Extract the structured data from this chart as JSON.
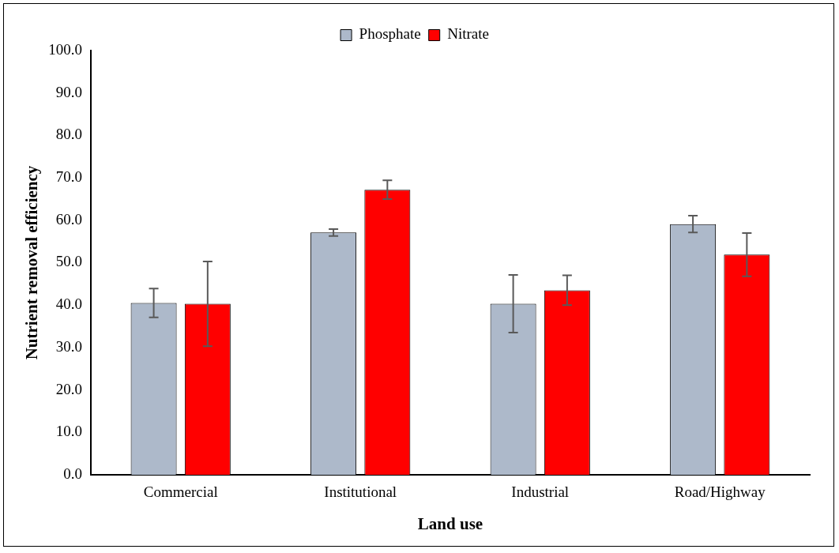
{
  "chart_data": {
    "type": "bar",
    "xlabel": "Land use",
    "ylabel": "Nutrient removal efficiency",
    "categories": [
      "Commercial",
      "Institutional",
      "Industrial",
      "Road/Highway"
    ],
    "series": [
      {
        "name": "Phosphate",
        "color": "#adb9ca",
        "values": [
          40.5,
          57.1,
          40.3,
          59.1
        ],
        "errors": [
          3.4,
          0.8,
          6.8,
          2.0
        ]
      },
      {
        "name": "Nitrate",
        "color": "#ff0000",
        "values": [
          40.3,
          67.2,
          43.5,
          51.9
        ],
        "errors": [
          10.0,
          2.2,
          3.5,
          5.1
        ]
      }
    ],
    "ylim": [
      0,
      100
    ],
    "yticks": [
      {
        "value": 0,
        "label": "0.0"
      },
      {
        "value": 10,
        "label": "10.0"
      },
      {
        "value": 20,
        "label": "20.0"
      },
      {
        "value": 30,
        "label": "30.0"
      },
      {
        "value": 40,
        "label": "40.0"
      },
      {
        "value": 50,
        "label": "50.0"
      },
      {
        "value": 60,
        "label": "60.0"
      },
      {
        "value": 70,
        "label": "70.0"
      },
      {
        "value": 80,
        "label": "80.0"
      },
      {
        "value": 90,
        "label": "90.0"
      },
      {
        "value": 100,
        "label": "100.0"
      }
    ],
    "grid": false,
    "legend": "top"
  }
}
